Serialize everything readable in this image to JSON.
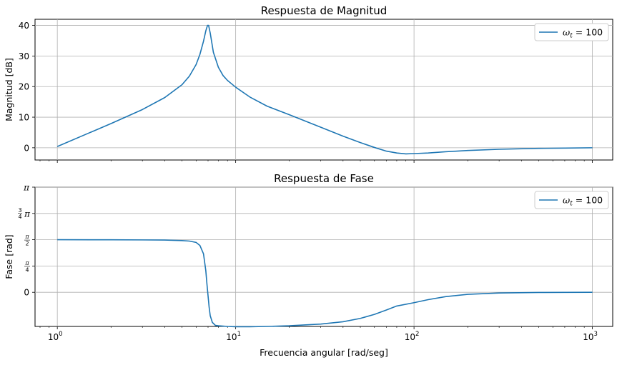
{
  "chart_data": [
    {
      "type": "line",
      "title": "Respuesta de Magnitud",
      "ylabel": "Magnitud [dB]",
      "xlabel": "",
      "xscale": "log",
      "xlim": [
        0.75,
        1300
      ],
      "ylim": [
        -4,
        42
      ],
      "yticks": [
        0,
        10,
        20,
        30,
        40
      ],
      "ytick_labels": [
        "0",
        "10",
        "20",
        "30",
        "40"
      ],
      "grid": true,
      "legend": "top-right",
      "color": "#1f77b4",
      "series": [
        {
          "name": "ω_t = 100",
          "name_main": "ω",
          "name_sub": "t",
          "name_rest": " = 100",
          "x": [
            1,
            1.5,
            2,
            3,
            4,
            5,
            5.5,
            6,
            6.3,
            6.6,
            6.8,
            6.95,
            7.05,
            7.2,
            7.5,
            8,
            8.5,
            9,
            10,
            12,
            15,
            20,
            30,
            40,
            50,
            60,
            70,
            80,
            90,
            100,
            120,
            150,
            200,
            300,
            500,
            700,
            1000
          ],
          "y": [
            0.4,
            4.8,
            7.9,
            12.5,
            16.4,
            20.6,
            23.4,
            27.2,
            30.5,
            34.8,
            38.2,
            40.0,
            40.0,
            37.5,
            31.2,
            26.3,
            23.6,
            22.0,
            19.8,
            16.6,
            13.6,
            10.8,
            6.7,
            3.8,
            1.7,
            0.1,
            -1.1,
            -1.7,
            -2.0,
            -1.9,
            -1.7,
            -1.3,
            -0.9,
            -0.5,
            -0.2,
            -0.1,
            0.0
          ]
        }
      ]
    },
    {
      "type": "line",
      "title": "Respuesta de Fase",
      "ylabel": "Fase [rad]",
      "xlabel": "Frecuencia angular [rad/seg]",
      "xscale": "log",
      "xlim": [
        0.75,
        1300
      ],
      "ylim": [
        -1.02,
        3.1416
      ],
      "yticks": [
        0,
        0.7854,
        1.5708,
        2.3562,
        3.1416
      ],
      "ytick_labels": [
        "0",
        "π/4",
        "π/2",
        "3/4π",
        "π"
      ],
      "xtick_labels": [
        "10^0",
        "10^1",
        "10^2",
        "10^3"
      ],
      "grid": true,
      "legend": "top-right",
      "color": "#1f77b4",
      "series": [
        {
          "name": "ω_t = 100",
          "name_main": "ω",
          "name_sub": "t",
          "name_rest": " = 100",
          "x": [
            1,
            2,
            3,
            4,
            5,
            5.5,
            6,
            6.3,
            6.6,
            6.8,
            6.9,
            7.0,
            7.1,
            7.2,
            7.4,
            7.7,
            8,
            9,
            10,
            12,
            15,
            20,
            30,
            40,
            50,
            60,
            70,
            80,
            100,
            120,
            150,
            200,
            300,
            500,
            700,
            1000
          ],
          "y": [
            1.5708,
            1.568,
            1.565,
            1.56,
            1.545,
            1.53,
            1.49,
            1.4,
            1.15,
            0.65,
            0.25,
            -0.1,
            -0.45,
            -0.7,
            -0.9,
            -0.99,
            -1.0,
            -1.02,
            -1.03,
            -1.03,
            -1.02,
            -1.0,
            -0.95,
            -0.88,
            -0.78,
            -0.66,
            -0.53,
            -0.41,
            -0.31,
            -0.22,
            -0.13,
            -0.06,
            -0.02,
            -0.005,
            -0.002,
            0.0
          ]
        }
      ]
    }
  ]
}
